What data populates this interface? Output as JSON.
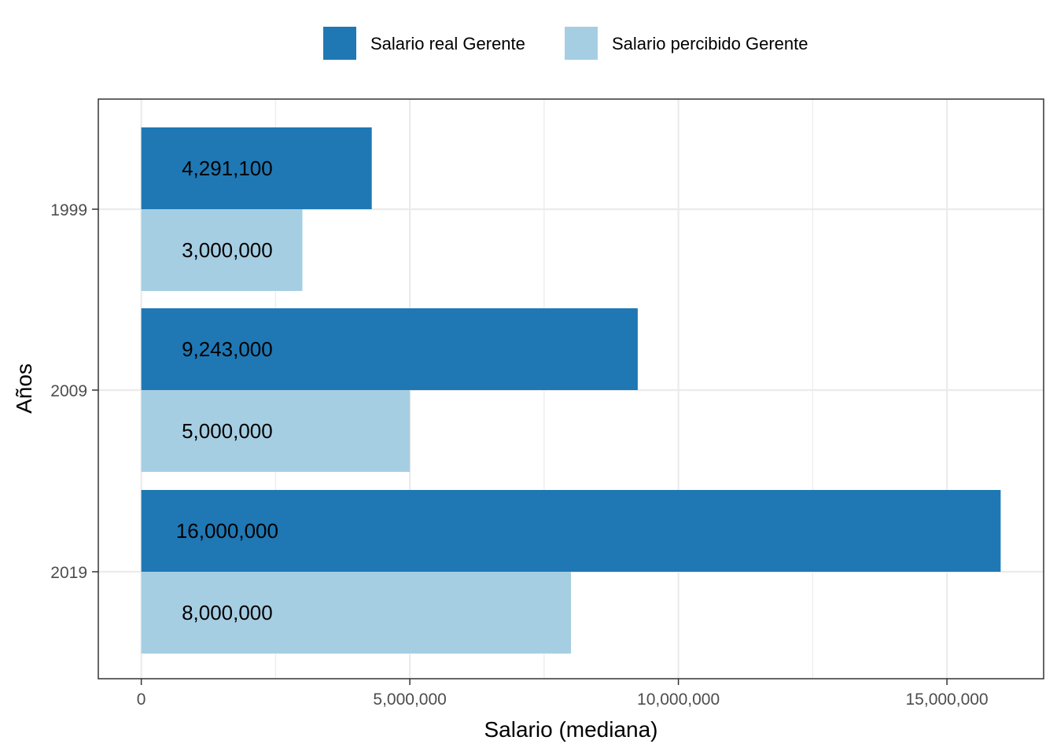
{
  "chart_data": {
    "type": "bar",
    "orientation": "horizontal",
    "categories": [
      "1999",
      "2009",
      "2019"
    ],
    "series": [
      {
        "name": "Salario real Gerente",
        "color": "#1f78b4",
        "values": [
          4291100,
          9243000,
          16000000
        ],
        "labels": [
          "4,291,100",
          "9,243,000",
          "16,000,000"
        ]
      },
      {
        "name": "Salario percibido Gerente",
        "color": "#a6cee3",
        "values": [
          3000000,
          5000000,
          8000000
        ],
        "labels": [
          "3,000,000",
          "5,000,000",
          "8,000,000"
        ]
      }
    ],
    "xlabel": "Salario (mediana)",
    "ylabel": "Años",
    "xlim": [
      -800000,
      16800000
    ],
    "xticks": [
      0,
      5000000,
      10000000,
      15000000
    ],
    "xtick_labels": [
      "0",
      "5,000,000",
      "10,000,000",
      "15,000,000"
    ],
    "label_position_value": 1600000,
    "grid": true,
    "legend_position": "top"
  }
}
